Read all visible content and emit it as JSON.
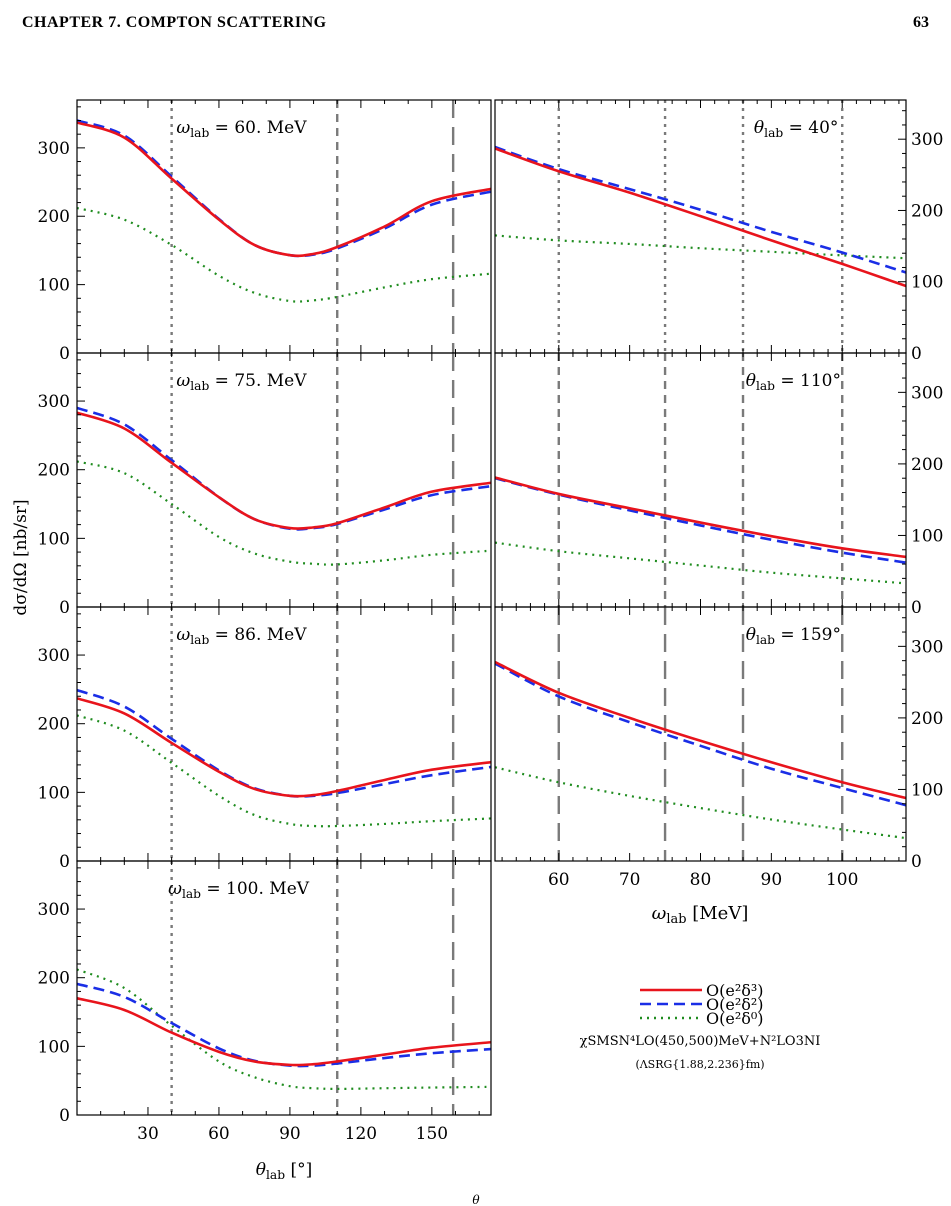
{
  "page": {
    "chapter_title": "CHAPTER 7.  COMPTON SCATTERING",
    "page_number": "63",
    "footer_fragment": "θ"
  },
  "legend": [
    {
      "label": "O(e²δ³)",
      "color": "#e8141c",
      "style": "solid"
    },
    {
      "label": "O(e²δ²)",
      "color": "#1a2ee6",
      "style": "dashed"
    },
    {
      "label": "O(e²δ⁰)",
      "color": "#1f8c1f",
      "style": "dotted"
    }
  ],
  "model_note_line1": "χSMSN⁴LO(450,500)MeV+N²LO3NI",
  "model_note_line2": "(ΛSRG{1.88,2.236}fm)",
  "chart_data": [
    {
      "type": "line",
      "panel": "omega-60",
      "annotation": "ωlab = 60. MeV",
      "xlabel": "θlab [°]",
      "ylabel": "dσ/dΩ [nb/sr]",
      "xlim": [
        0,
        175
      ],
      "ylim": [
        0,
        370
      ],
      "xticks": [
        30,
        60,
        90,
        120,
        150
      ],
      "yticks": [
        0,
        100,
        200,
        300
      ],
      "vlines": [
        {
          "x": 40,
          "style": "dotted"
        },
        {
          "x": 110,
          "style": "shortdash"
        },
        {
          "x": 159,
          "style": "longdash"
        }
      ],
      "x": [
        0,
        20,
        40,
        60,
        75,
        90,
        100,
        110,
        130,
        150,
        175
      ],
      "series": [
        {
          "name": "O(e²δ³)",
          "values": [
            337,
            315,
            255,
            195,
            158,
            143,
            145,
            155,
            185,
            222,
            240
          ]
        },
        {
          "name": "O(e²δ²)",
          "values": [
            340,
            318,
            258,
            196,
            158,
            143,
            144,
            153,
            182,
            217,
            236
          ]
        },
        {
          "name": "O(e²δ⁰)",
          "values": [
            212,
            195,
            158,
            113,
            88,
            76,
            77,
            82,
            96,
            108,
            116
          ]
        }
      ]
    },
    {
      "type": "line",
      "panel": "omega-75",
      "annotation": "ωlab = 75. MeV",
      "xlim": [
        0,
        175
      ],
      "ylim": [
        0,
        370
      ],
      "xticks": [
        30,
        60,
        90,
        120,
        150
      ],
      "yticks": [
        0,
        100,
        200,
        300
      ],
      "vlines": [
        {
          "x": 40,
          "style": "dotted"
        },
        {
          "x": 110,
          "style": "shortdash"
        },
        {
          "x": 159,
          "style": "longdash"
        }
      ],
      "x": [
        0,
        20,
        40,
        60,
        75,
        90,
        100,
        110,
        130,
        150,
        175
      ],
      "series": [
        {
          "name": "O(e²δ³)",
          "values": [
            283,
            260,
            210,
            160,
            128,
            115,
            116,
            122,
            145,
            168,
            181
          ]
        },
        {
          "name": "O(e²δ²)",
          "values": [
            290,
            266,
            214,
            160,
            128,
            114,
            115,
            121,
            142,
            163,
            176
          ]
        },
        {
          "name": "O(e²δ⁰)",
          "values": [
            212,
            195,
            150,
            102,
            78,
            66,
            63,
            62,
            68,
            76,
            82
          ]
        }
      ]
    },
    {
      "type": "line",
      "panel": "omega-86",
      "annotation": "ωlab = 86. MeV",
      "xlim": [
        0,
        175
      ],
      "ylim": [
        0,
        370
      ],
      "xticks": [
        30,
        60,
        90,
        120,
        150
      ],
      "yticks": [
        0,
        100,
        200,
        300
      ],
      "vlines": [
        {
          "x": 40,
          "style": "dotted"
        },
        {
          "x": 110,
          "style": "shortdash"
        },
        {
          "x": 159,
          "style": "longdash"
        }
      ],
      "x": [
        0,
        20,
        40,
        60,
        75,
        90,
        100,
        110,
        130,
        150,
        175
      ],
      "series": [
        {
          "name": "O(e²δ³)",
          "values": [
            237,
            215,
            172,
            130,
            105,
            95,
            96,
            102,
            118,
            133,
            144
          ]
        },
        {
          "name": "O(e²δ²)",
          "values": [
            249,
            225,
            178,
            132,
            106,
            95,
            95,
            99,
            112,
            125,
            137
          ]
        },
        {
          "name": "O(e²δ⁰)",
          "values": [
            212,
            190,
            143,
            95,
            67,
            54,
            51,
            51,
            54,
            58,
            62
          ]
        }
      ]
    },
    {
      "type": "line",
      "panel": "omega-100",
      "annotation": "ωlab = 100. MeV",
      "xlim": [
        0,
        175
      ],
      "ylim": [
        0,
        370
      ],
      "xticks": [
        30,
        60,
        90,
        120,
        150
      ],
      "yticks": [
        0,
        100,
        200,
        300
      ],
      "vlines": [
        {
          "x": 40,
          "style": "dotted"
        },
        {
          "x": 110,
          "style": "shortdash"
        },
        {
          "x": 159,
          "style": "longdash"
        }
      ],
      "x": [
        0,
        20,
        40,
        60,
        75,
        90,
        100,
        110,
        130,
        150,
        175
      ],
      "series": [
        {
          "name": "O(e²δ³)",
          "values": [
            170,
            153,
            120,
            92,
            78,
            73,
            74,
            78,
            88,
            98,
            106
          ]
        },
        {
          "name": "O(e²δ²)",
          "values": [
            191,
            172,
            134,
            97,
            79,
            72,
            72,
            75,
            83,
            90,
            96
          ]
        },
        {
          "name": "O(e²δ⁰)",
          "values": [
            212,
            185,
            130,
            78,
            55,
            42,
            39,
            38,
            39,
            40,
            41
          ]
        }
      ]
    },
    {
      "type": "line",
      "panel": "theta-40",
      "annotation": "θlab = 40°",
      "xlim": [
        51,
        109
      ],
      "ylim": [
        0,
        355
      ],
      "xticks": [
        60,
        70,
        80,
        90,
        100
      ],
      "yticks": [
        0,
        100,
        200,
        300
      ],
      "vlines": [
        {
          "x": 60,
          "style": "dotted"
        },
        {
          "x": 75,
          "style": "dotted"
        },
        {
          "x": 86,
          "style": "dotted"
        },
        {
          "x": 100,
          "style": "dotted"
        }
      ],
      "x": [
        51,
        60,
        70,
        80,
        90,
        100,
        109
      ],
      "series": [
        {
          "name": "O(e²δ³)",
          "values": [
            287,
            255,
            225,
            192,
            158,
            125,
            94
          ]
        },
        {
          "name": "O(e²δ²)",
          "values": [
            289,
            258,
            230,
            201,
            170,
            141,
            113
          ]
        },
        {
          "name": "O(e²δ⁰)",
          "values": [
            165,
            158,
            153,
            147,
            142,
            137,
            133
          ]
        }
      ]
    },
    {
      "type": "line",
      "panel": "theta-110",
      "annotation": "θlab = 110°",
      "xlim": [
        51,
        109
      ],
      "ylim": [
        0,
        355
      ],
      "xticks": [
        60,
        70,
        80,
        90,
        100
      ],
      "yticks": [
        0,
        100,
        200,
        300
      ],
      "vlines": [
        {
          "x": 60,
          "style": "shortdash"
        },
        {
          "x": 75,
          "style": "shortdash"
        },
        {
          "x": 86,
          "style": "shortdash"
        },
        {
          "x": 100,
          "style": "shortdash"
        }
      ],
      "x": [
        51,
        60,
        70,
        80,
        90,
        100,
        109
      ],
      "series": [
        {
          "name": "O(e²δ³)",
          "values": [
            181,
            158,
            138,
            118,
            99,
            82,
            70
          ]
        },
        {
          "name": "O(e²δ²)",
          "values": [
            180,
            157,
            135,
            114,
            94,
            76,
            62
          ]
        },
        {
          "name": "O(e²δ⁰)",
          "values": [
            90,
            78,
            68,
            58,
            48,
            40,
            33
          ]
        }
      ]
    },
    {
      "type": "line",
      "panel": "theta-159",
      "annotation": "θlab = 159°",
      "xlabel": "ωlab [MeV]",
      "xlim": [
        51,
        109
      ],
      "ylim": [
        0,
        355
      ],
      "xticks": [
        60,
        70,
        80,
        90,
        100
      ],
      "yticks": [
        0,
        100,
        200,
        300
      ],
      "vlines": [
        {
          "x": 60,
          "style": "longdash"
        },
        {
          "x": 75,
          "style": "longdash"
        },
        {
          "x": 86,
          "style": "longdash"
        },
        {
          "x": 100,
          "style": "longdash"
        }
      ],
      "x": [
        51,
        60,
        70,
        80,
        90,
        100,
        109
      ],
      "series": [
        {
          "name": "O(e²δ³)",
          "values": [
            278,
            235,
            200,
            168,
            138,
            110,
            88
          ]
        },
        {
          "name": "O(e²δ²)",
          "values": [
            276,
            230,
            194,
            161,
            129,
            102,
            78
          ]
        },
        {
          "name": "O(e²δ⁰)",
          "values": [
            131,
            110,
            91,
            74,
            58,
            44,
            32
          ]
        }
      ]
    }
  ]
}
